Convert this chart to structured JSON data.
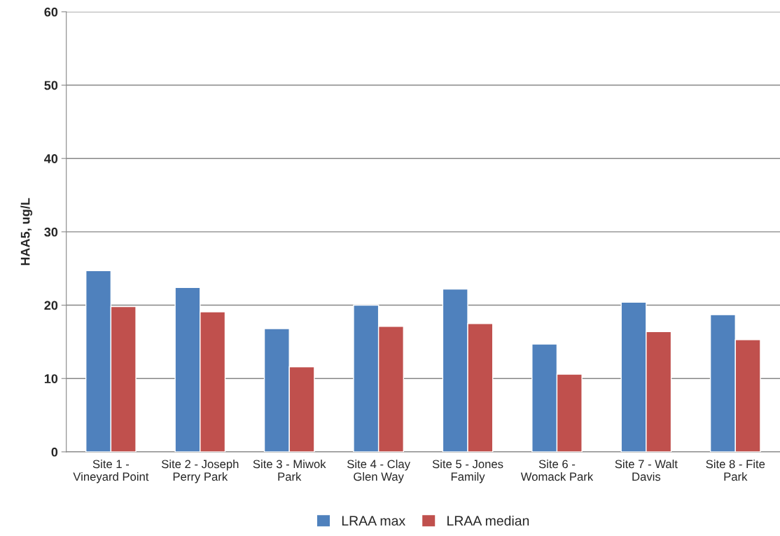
{
  "chart_data": {
    "type": "bar",
    "ylabel": "HAA5, ug/L",
    "categories": [
      "Site 1 -\nVineyard Point",
      "Site 2 - Joseph\nPerry Park",
      "Site 3 - Miwok\nPark",
      "Site 4 - Clay\nGlen Way",
      "Site 5 - Jones\nFamily",
      "Site 6 -\nWomack Park",
      "Site 7 - Walt\nDavis",
      "Site 8 - Fite\nPark"
    ],
    "series": [
      {
        "name": "LRAA max",
        "color": "#4f81bd",
        "values": [
          24.7,
          22.4,
          16.8,
          20.0,
          22.2,
          14.7,
          20.4,
          18.7
        ]
      },
      {
        "name": "LRAA median",
        "color": "#c0504d",
        "values": [
          19.8,
          19.1,
          11.6,
          17.1,
          17.5,
          10.6,
          16.4,
          15.3
        ]
      }
    ],
    "ylim": [
      0,
      60
    ],
    "yticks": [
      0,
      10,
      20,
      30,
      40,
      50,
      60
    ],
    "grid": "y",
    "legend": "bottom"
  }
}
